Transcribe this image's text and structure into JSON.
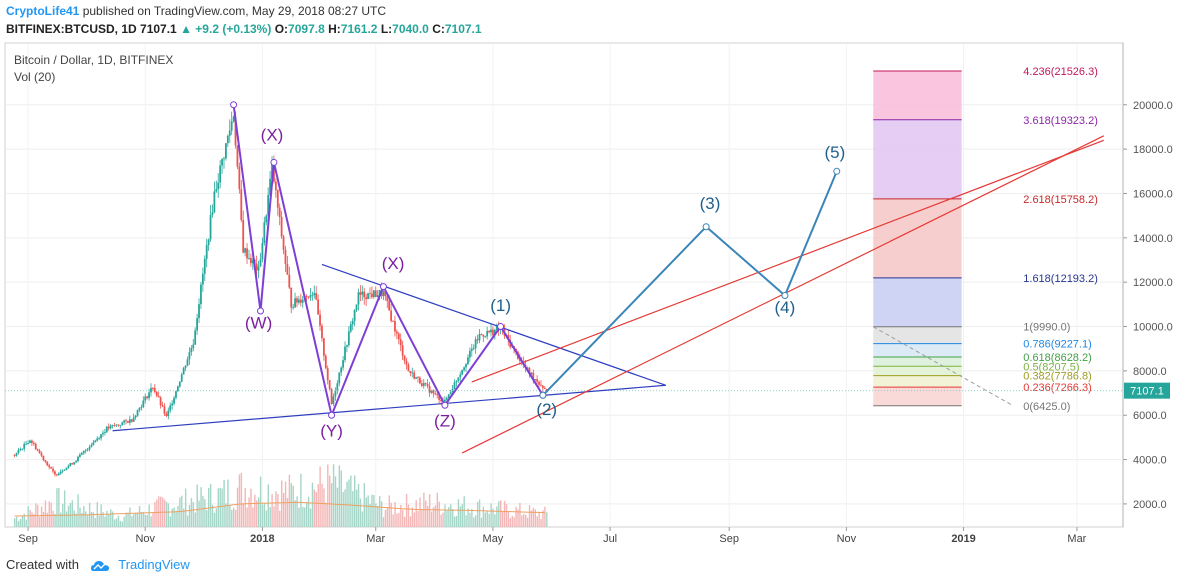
{
  "header": {
    "author": "CryptoLife41",
    "published": "published on TradingView.com, May 29, 2018 08:27 UTC",
    "symbol": "BITFINEX:BTCUSD, 1D",
    "last": "7107.1",
    "change": "+9.2 (+0.13%)",
    "o_label": "O:",
    "o_value": "7097.8",
    "h_label": "H:",
    "h_value": "7161.2",
    "l_label": "L:",
    "l_value": "7040.0",
    "c_label": "C:",
    "c_value": "7107.1"
  },
  "footer": {
    "created_with": "Created with",
    "brand": "TradingView"
  },
  "chart_data": {
    "type": "candlestick",
    "title": "Bitcoin / Dollar, 1D, BITFINEX",
    "indicator_label": "Vol (20)",
    "price_axis": {
      "min": 1500,
      "max": 22200,
      "ticks": [
        2000,
        4000,
        6000,
        8000,
        10000,
        12000,
        14000,
        16000,
        18000,
        20000
      ],
      "tick_labels": [
        "2000.0",
        "4000.0",
        "6000.0",
        "8000.0",
        "10000.0",
        "12000.0",
        "14000.0",
        "16000.0",
        "18000.0",
        "20000.0"
      ]
    },
    "time_axis": {
      "ticks": [
        "2017-09-01",
        "2017-11-01",
        "2018-01-01",
        "2018-03-01",
        "2018-05-01",
        "2018-07-01",
        "2018-09-01",
        "2018-11-01",
        "2019-01-01",
        "2019-03-01"
      ],
      "tick_labels": [
        "Sep",
        "Nov",
        "2018",
        "Mar",
        "May",
        "Jul",
        "Sep",
        "Nov",
        "2019",
        "Mar"
      ]
    },
    "last_price": 7107.1,
    "last_price_label": "7107.1",
    "price_path": [
      [
        "2017-08-25",
        4200
      ],
      [
        "2017-09-02",
        4900
      ],
      [
        "2017-09-15",
        3300
      ],
      [
        "2017-09-25",
        3900
      ],
      [
        "2017-10-12",
        5400
      ],
      [
        "2017-10-25",
        5800
      ],
      [
        "2017-11-05",
        7300
      ],
      [
        "2017-11-12",
        5900
      ],
      [
        "2017-11-26",
        9300
      ],
      [
        "2017-12-07",
        16000
      ],
      [
        "2017-12-17",
        19600
      ],
      [
        "2017-12-22",
        13500
      ],
      [
        "2017-12-30",
        12500
      ],
      [
        "2018-01-06",
        17200
      ],
      [
        "2018-01-16",
        11000
      ],
      [
        "2018-01-28",
        11600
      ],
      [
        "2018-02-06",
        6500
      ],
      [
        "2018-02-20",
        11400
      ],
      [
        "2018-03-05",
        11500
      ],
      [
        "2018-03-18",
        8000
      ],
      [
        "2018-04-01",
        6900
      ],
      [
        "2018-04-06",
        6600
      ],
      [
        "2018-04-24",
        9600
      ],
      [
        "2018-05-05",
        9900
      ],
      [
        "2018-05-18",
        8100
      ],
      [
        "2018-05-29",
        7107
      ]
    ],
    "volume_path": [
      [
        "2017-08-25",
        0.2
      ],
      [
        "2017-09-15",
        0.6
      ],
      [
        "2017-10-20",
        0.25
      ],
      [
        "2017-11-12",
        0.5
      ],
      [
        "2017-12-08",
        0.7
      ],
      [
        "2017-12-22",
        0.9
      ],
      [
        "2018-01-16",
        0.8
      ],
      [
        "2018-02-06",
        1.0
      ],
      [
        "2018-03-05",
        0.45
      ],
      [
        "2018-03-30",
        0.55
      ],
      [
        "2018-04-24",
        0.45
      ],
      [
        "2018-05-29",
        0.3
      ]
    ],
    "volume_ma_path": [
      [
        "2017-08-25",
        0.2
      ],
      [
        "2017-10-01",
        0.22
      ],
      [
        "2017-11-20",
        0.28
      ],
      [
        "2017-12-20",
        0.42
      ],
      [
        "2018-01-20",
        0.45
      ],
      [
        "2018-02-15",
        0.4
      ],
      [
        "2018-03-20",
        0.32
      ],
      [
        "2018-04-20",
        0.3
      ],
      [
        "2018-05-29",
        0.26
      ]
    ],
    "wxyxz_path": [
      [
        "2017-12-17",
        20000
      ],
      [
        "2017-12-31",
        10700
      ],
      [
        "2018-01-07",
        17400
      ],
      [
        "2018-02-06",
        6000
      ],
      [
        "2018-03-05",
        11800
      ],
      [
        "2018-04-06",
        6450
      ],
      [
        "2018-05-05",
        10000
      ],
      [
        "2018-05-27",
        6900
      ]
    ],
    "wave_labels": [
      {
        "text": "(W)",
        "date": "2017-12-30",
        "price": 9900,
        "color": "#7b1fa2"
      },
      {
        "text": "(X)",
        "date": "2018-01-06",
        "price": 18400,
        "color": "#7b1fa2"
      },
      {
        "text": "(Y)",
        "date": "2018-02-06",
        "price": 5050,
        "color": "#7b1fa2"
      },
      {
        "text": "(X)",
        "date": "2018-03-10",
        "price": 12600,
        "color": "#7b1fa2"
      },
      {
        "text": "(Z)",
        "date": "2018-04-06",
        "price": 5500,
        "color": "#7b1fa2"
      },
      {
        "text": "(1)",
        "date": "2018-05-05",
        "price": 10700,
        "color": "#1f5f8b"
      },
      {
        "text": "(2)",
        "date": "2018-05-29",
        "price": 6000,
        "color": "#1f5f8b"
      },
      {
        "text": "(3)",
        "date": "2018-08-22",
        "price": 15300,
        "color": "#1f5f8b"
      },
      {
        "text": "(4)",
        "date": "2018-09-30",
        "price": 10600,
        "color": "#1f5f8b"
      },
      {
        "text": "(5)",
        "date": "2018-10-26",
        "price": 17600,
        "color": "#1f5f8b"
      }
    ],
    "projection_path": [
      [
        "2018-05-27",
        6900
      ],
      [
        "2018-08-20",
        14500
      ],
      [
        "2018-09-30",
        11400
      ],
      [
        "2018-10-27",
        17000
      ]
    ],
    "triangle_upper": [
      [
        "2018-02-01",
        12800
      ],
      [
        "2018-07-30",
        7350
      ]
    ],
    "triangle_lower": [
      [
        "2017-10-15",
        5300
      ],
      [
        "2018-07-30",
        7350
      ]
    ],
    "channel_upper": [
      [
        "2018-04-20",
        7500
      ],
      [
        "2019-03-15",
        18400
      ]
    ],
    "channel_lower": [
      [
        "2018-04-15",
        4300
      ],
      [
        "2019-03-15",
        18600
      ]
    ],
    "fib_extension": {
      "date_start": "2018-11-15",
      "date_end": "2018-12-31",
      "levels": [
        {
          "ratio": "4.236",
          "price": 21526.3,
          "label": "4.236(21526.3)",
          "color": "#c2185b",
          "fill": "#f8bbd9"
        },
        {
          "ratio": "3.618",
          "price": 19323.2,
          "label": "3.618(19323.2)",
          "color": "#8e24aa",
          "fill": "#e1c4f2"
        },
        {
          "ratio": "2.618",
          "price": 15758.2,
          "label": "2.618(15758.2)",
          "color": "#c62828",
          "fill": "#f6c6c6"
        },
        {
          "ratio": "1.618",
          "price": 12193.2,
          "label": "1.618(12193.2)",
          "color": "#283593",
          "fill": "#c8cdf2"
        },
        {
          "ratio": "1",
          "price": 9990.0,
          "label": "1(9990.0)",
          "color": "#757575",
          "fill": "#e0e0e0"
        },
        {
          "ratio": "0.786",
          "price": 9227.1,
          "label": "0.786(9227.1)",
          "color": "#1e88e5",
          "fill": "#d6e6f5"
        },
        {
          "ratio": "0.618",
          "price": 8628.2,
          "label": "0.618(8628.2)",
          "color": "#43a047",
          "fill": "#d8efd8"
        },
        {
          "ratio": "0.5",
          "price": 8207.5,
          "label": "0.5(8207.5)",
          "color": "#7cb342",
          "fill": "#dff0d0"
        },
        {
          "ratio": "0.382",
          "price": 7786.8,
          "label": "0.382(7786.8)",
          "color": "#9e9d24",
          "fill": "#eef0cf"
        },
        {
          "ratio": "0.236",
          "price": 7266.3,
          "label": "0.236(7266.3)",
          "color": "#e53935",
          "fill": "#f9d3d2"
        },
        {
          "ratio": "0",
          "price": 6425.0,
          "label": "0(6425.0)",
          "color": "#757575",
          "fill": null
        }
      ]
    }
  }
}
